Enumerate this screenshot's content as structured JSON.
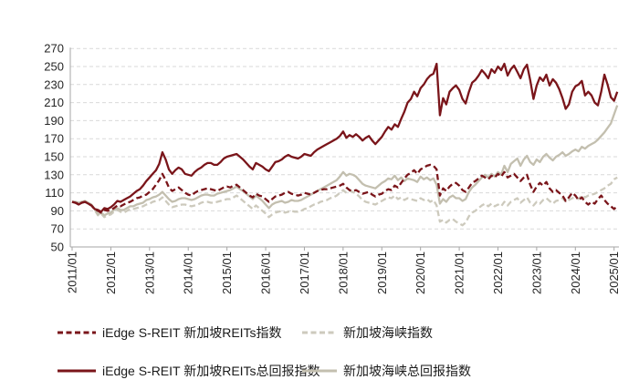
{
  "page": {
    "background": "#ffffff"
  },
  "colors": {
    "maroon": "#7A151A",
    "gray_solid": "#C3BFAF",
    "gray_dashed": "#CDCABD",
    "gridline": "#D9D9D9",
    "axis": "#A6A6A6",
    "text": "#262626"
  },
  "chart_data": {
    "type": "line",
    "title": "",
    "xlabel": "",
    "ylabel": "",
    "grid": "horizontal-dashed",
    "legend_position": "bottom",
    "x_axis": {
      "unit": "month",
      "start": "2011/01",
      "tick_labels": [
        "2011/01",
        "2012/01",
        "2013/01",
        "2014/01",
        "2015/01",
        "2016/01",
        "2017/01",
        "2018/01",
        "2019/01",
        "2020/01",
        "2021/01",
        "2022/01",
        "2023/01",
        "2024/01",
        "2025/01"
      ],
      "tick_month_indices": [
        0,
        12,
        24,
        36,
        48,
        60,
        72,
        84,
        96,
        108,
        120,
        132,
        144,
        156,
        168
      ]
    },
    "y_axis": {
      "min": 50,
      "max": 270,
      "step": 20,
      "tick_labels": [
        "270",
        "250",
        "230",
        "210",
        "190",
        "170",
        "150",
        "130",
        "110",
        "90",
        "70",
        "50"
      ]
    },
    "series": [
      {
        "name": "iEdge S-REIT 新加坡REITs指数",
        "color": "#7A151A",
        "style": "dashed",
        "values": [
          100,
          99,
          98,
          99,
          100,
          98,
          96,
          92,
          90,
          88,
          91,
          90,
          91,
          93,
          96,
          95,
          97,
          99,
          100,
          102,
          104,
          105,
          107,
          108,
          111,
          114,
          119,
          124,
          131,
          124,
          116,
          112,
          114,
          116,
          113,
          110,
          108,
          107,
          110,
          112,
          113,
          114,
          115,
          114,
          113,
          112,
          114,
          116,
          117,
          116,
          118,
          119,
          116,
          113,
          110,
          107,
          105,
          109,
          107,
          106,
          103,
          100,
          103,
          106,
          107,
          108,
          110,
          111,
          109,
          108,
          107,
          108,
          110,
          109,
          108,
          110,
          112,
          113,
          114,
          114,
          115,
          116,
          117,
          118,
          120,
          116,
          113,
          112,
          113,
          111,
          109,
          110,
          111,
          108,
          106,
          108,
          109,
          112,
          114,
          113,
          118,
          116,
          121,
          126,
          130,
          132,
          135,
          131,
          136,
          138,
          140,
          141,
          140,
          136,
          107,
          115,
          112,
          117,
          120,
          121,
          118,
          113,
          111,
          116,
          121,
          123,
          126,
          129,
          127,
          125,
          129,
          127,
          131,
          128,
          133,
          127,
          129,
          131,
          127,
          123,
          127,
          130,
          119,
          111,
          117,
          121,
          118,
          122,
          115,
          111,
          113,
          110,
          107,
          101,
          105,
          110,
          107,
          102,
          105,
          100,
          97,
          100,
          98,
          103,
          107,
          102,
          98,
          95,
          92,
          95
        ]
      },
      {
        "name": "新加坡海峡指数",
        "color": "#CDCABD",
        "style": "dashed",
        "values": [
          100,
          100,
          99,
          100,
          100,
          98,
          96,
          91,
          85,
          87,
          83,
          85,
          86,
          89,
          91,
          89,
          88,
          90,
          92,
          92,
          93,
          94,
          95,
          97,
          98,
          100,
          101,
          102,
          105,
          101,
          97,
          94,
          95,
          96,
          97,
          97,
          96,
          95,
          96,
          97,
          99,
          100,
          100,
          99,
          99,
          100,
          101,
          102,
          103,
          103,
          105,
          107,
          104,
          101,
          98,
          95,
          92,
          96,
          93,
          90,
          87,
          83,
          86,
          88,
          89,
          90,
          88,
          89,
          90,
          89,
          89,
          90,
          92,
          93,
          95,
          97,
          98,
          100,
          101,
          102,
          104,
          105,
          107,
          110,
          113,
          110,
          112,
          111,
          109,
          106,
          102,
          100,
          99,
          98,
          97,
          99,
          101,
          103,
          105,
          104,
          107,
          103,
          105,
          102,
          104,
          103,
          102,
          101,
          104,
          102,
          103,
          100,
          102,
          96,
          78,
          80,
          77,
          80,
          81,
          78,
          76,
          74,
          77,
          84,
          88,
          90,
          93,
          96,
          98,
          95,
          98,
          95,
          97,
          95,
          100,
          96,
          100,
          102,
          104,
          99,
          102,
          105,
          99,
          96,
          100,
          98,
          102,
          104,
          101,
          98,
          101,
          102,
          104,
          100,
          102,
          104,
          105,
          103,
          107,
          105,
          107,
          108,
          109,
          111,
          113,
          115,
          118,
          120,
          125,
          127
        ]
      },
      {
        "name": "iEdge S-REIT 新加坡REITs总回报指数",
        "color": "#7A151A",
        "style": "solid",
        "values": [
          100,
          99,
          97,
          99,
          100,
          98,
          96,
          92,
          91,
          89,
          93,
          92,
          94,
          97,
          101,
          100,
          102,
          104,
          106,
          109,
          112,
          114,
          118,
          123,
          127,
          131,
          135,
          142,
          155,
          147,
          136,
          131,
          135,
          138,
          136,
          131,
          130,
          129,
          133,
          136,
          138,
          141,
          143,
          143,
          141,
          141,
          144,
          148,
          150,
          151,
          152,
          153,
          150,
          147,
          143,
          139,
          136,
          143,
          141,
          139,
          136,
          134,
          139,
          144,
          145,
          147,
          150,
          152,
          150,
          149,
          148,
          150,
          153,
          152,
          151,
          155,
          158,
          160,
          162,
          164,
          166,
          168,
          170,
          173,
          178,
          171,
          174,
          172,
          175,
          172,
          168,
          171,
          173,
          168,
          164,
          168,
          172,
          178,
          183,
          180,
          186,
          183,
          192,
          200,
          210,
          214,
          222,
          217,
          226,
          230,
          236,
          240,
          242,
          253,
          196,
          215,
          208,
          222,
          226,
          229,
          224,
          214,
          209,
          222,
          232,
          235,
          240,
          246,
          242,
          237,
          247,
          243,
          250,
          246,
          253,
          240,
          247,
          251,
          244,
          237,
          247,
          252,
          235,
          214,
          229,
          238,
          234,
          241,
          229,
          236,
          232,
          225,
          215,
          203,
          208,
          222,
          228,
          230,
          234,
          218,
          222,
          218,
          210,
          207,
          222,
          241,
          230,
          216,
          212,
          222
        ]
      },
      {
        "name": "新加坡海峡总回报指数",
        "color": "#C3BFAF",
        "style": "solid",
        "values": [
          100,
          100,
          99,
          100,
          101,
          99,
          97,
          92,
          86,
          88,
          85,
          87,
          88,
          91,
          93,
          91,
          91,
          93,
          95,
          95,
          97,
          98,
          99,
          102,
          103,
          105,
          106,
          108,
          111,
          107,
          103,
          100,
          101,
          103,
          104,
          104,
          103,
          102,
          103,
          105,
          107,
          108,
          108,
          107,
          107,
          109,
          110,
          111,
          112,
          113,
          115,
          117,
          114,
          112,
          109,
          106,
          103,
          107,
          104,
          101,
          97,
          93,
          97,
          99,
          100,
          101,
          99,
          100,
          102,
          101,
          101,
          102,
          104,
          106,
          108,
          110,
          112,
          114,
          116,
          118,
          120,
          122,
          124,
          128,
          133,
          129,
          131,
          130,
          128,
          124,
          120,
          118,
          117,
          116,
          115,
          118,
          121,
          123,
          126,
          125,
          129,
          124,
          127,
          123,
          126,
          125,
          124,
          122,
          128,
          125,
          127,
          124,
          126,
          119,
          98,
          103,
          100,
          105,
          107,
          104,
          104,
          101,
          103,
          111,
          116,
          119,
          123,
          127,
          130,
          127,
          131,
          128,
          133,
          130,
          140,
          133,
          142,
          145,
          148,
          140,
          147,
          151,
          144,
          141,
          147,
          144,
          150,
          153,
          149,
          146,
          150,
          152,
          155,
          151,
          153,
          156,
          158,
          156,
          161,
          159,
          162,
          164,
          166,
          169,
          173,
          177,
          182,
          187,
          197,
          207
        ]
      }
    ],
    "legend": {
      "items": [
        {
          "label": "iEdge S-REIT 新加坡REITs指数",
          "series_index": 0
        },
        {
          "label": "新加坡海峡指数",
          "series_index": 1
        },
        {
          "label": "iEdge S-REIT 新加坡REITs总回报指数",
          "series_index": 2
        },
        {
          "label": "新加坡海峡总回报指数",
          "series_index": 3
        }
      ]
    }
  }
}
